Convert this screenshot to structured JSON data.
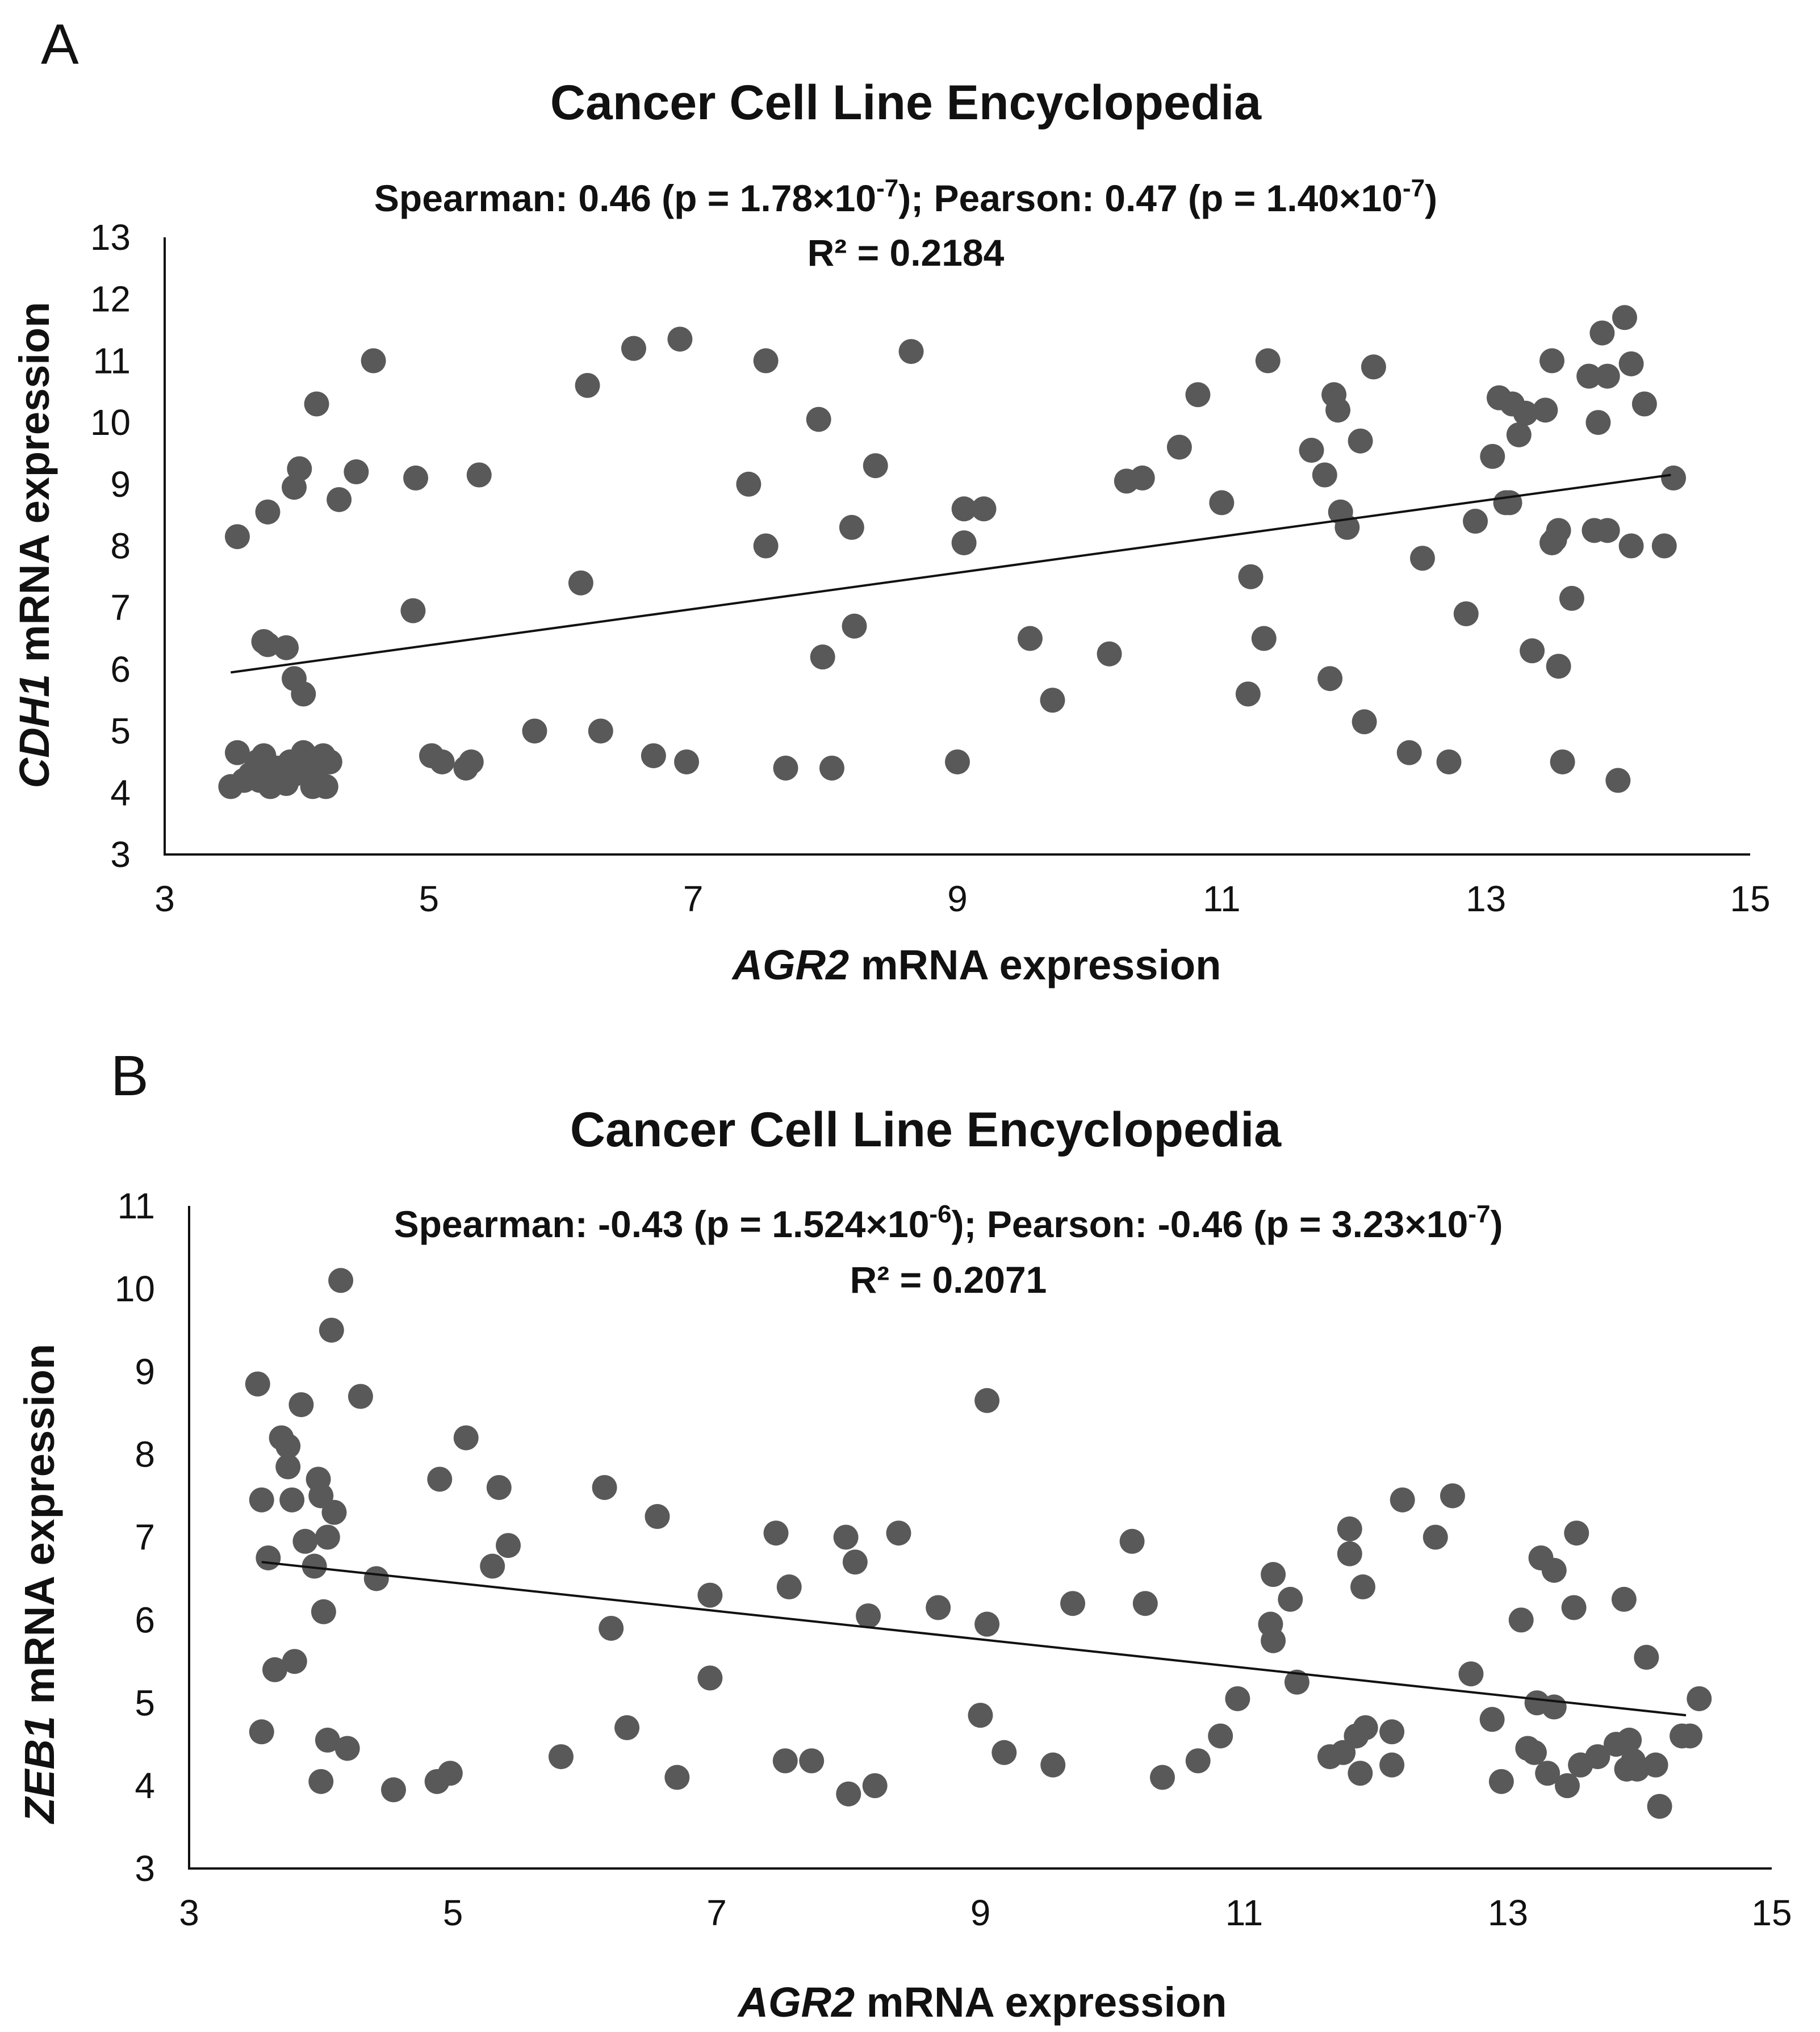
{
  "chart_data": [
    {
      "type": "scatter",
      "panel": "A",
      "title": "Cancer Cell Line Encyclopedia",
      "stats": {
        "spearman_label": "Spearman: 0.46 (p = 1.78×10",
        "spearman_exp": "-7",
        "pearson_label": "); Pearson: 0.47 (p = 1.40×10",
        "pearson_exp": "-7",
        "close": ")",
        "r2": "R² = 0.2184"
      },
      "xlabel_gene": "AGR2",
      "xlabel_rest": " mRNA expression",
      "ylabel_gene": "CDH1",
      "ylabel_rest": " mRNA expression",
      "xlim": [
        3,
        15
      ],
      "ylim": [
        3,
        13
      ],
      "xticks": [
        "3",
        "5",
        "7",
        "9",
        "11",
        "13",
        "15"
      ],
      "yticks": [
        "3",
        "4",
        "5",
        "6",
        "7",
        "8",
        "9",
        "10",
        "11",
        "12",
        "13"
      ],
      "trendline": {
        "x": [
          3.5,
          14.4
        ],
        "y": [
          5.95,
          9.15
        ]
      },
      "x": [
        3.5,
        3.55,
        3.6,
        3.65,
        3.7,
        3.72,
        3.75,
        3.78,
        3.8,
        3.83,
        3.85,
        3.88,
        3.9,
        3.92,
        3.95,
        3.98,
        4.0,
        4.02,
        4.05,
        4.08,
        4.1,
        4.12,
        4.15,
        4.2,
        4.22,
        4.25,
        3.75,
        3.78,
        3.92,
        3.98,
        4.05,
        3.55,
        3.78,
        3.98,
        4.02,
        4.32,
        4.45,
        4.58,
        4.15,
        4.88,
        5.02,
        4.9,
        5.1,
        5.28,
        5.32,
        5.38,
        5.8,
        6.15,
        6.2,
        6.3,
        6.55,
        6.7,
        6.9,
        6.95,
        7.42,
        7.55,
        7.55,
        7.7,
        7.95,
        7.98,
        8.05,
        8.2,
        8.22,
        8.38,
        8.65,
        9.0,
        9.05,
        9.05,
        9.2,
        9.55,
        9.72,
        10.15,
        10.28,
        10.4,
        10.68,
        10.82,
        11.0,
        11.2,
        11.22,
        11.32,
        11.35,
        11.68,
        11.78,
        11.82,
        11.85,
        11.88,
        11.9,
        11.95,
        12.05,
        12.08,
        12.15,
        12.42,
        12.52,
        12.72,
        12.85,
        12.92,
        13.05,
        13.1,
        13.15,
        13.18,
        13.2,
        13.25,
        13.3,
        13.35,
        13.45,
        13.5,
        13.5,
        13.52,
        13.55,
        13.58,
        13.65,
        13.78,
        13.82,
        13.85,
        13.88,
        13.92,
        13.92,
        14.0,
        14.05,
        14.1,
        14.2,
        14.35,
        14.42,
        14.1,
        13.55
      ],
      "y": [
        4.1,
        4.65,
        4.2,
        4.3,
        4.5,
        4.2,
        4.6,
        4.35,
        4.1,
        4.2,
        4.4,
        4.25,
        4.3,
        4.15,
        4.5,
        4.3,
        4.45,
        4.35,
        4.65,
        4.5,
        4.3,
        4.1,
        4.2,
        4.6,
        4.1,
        4.5,
        6.45,
        6.4,
        6.35,
        5.85,
        5.6,
        8.15,
        8.55,
        8.95,
        9.25,
        8.75,
        9.2,
        11.0,
        10.3,
        6.95,
        4.6,
        9.1,
        4.5,
        4.4,
        4.5,
        9.15,
        5.0,
        7.4,
        10.6,
        5.0,
        11.2,
        4.6,
        11.35,
        4.5,
        9.0,
        8.0,
        11.0,
        4.4,
        10.05,
        6.2,
        4.4,
        8.3,
        6.7,
        9.3,
        11.15,
        4.5,
        8.05,
        8.6,
        8.6,
        6.5,
        5.5,
        6.25,
        9.05,
        9.1,
        9.6,
        10.45,
        8.7,
        5.6,
        7.5,
        6.5,
        11.0,
        9.55,
        9.15,
        5.85,
        10.45,
        10.2,
        8.55,
        8.3,
        9.7,
        5.15,
        10.9,
        4.65,
        7.8,
        4.5,
        6.9,
        8.4,
        9.45,
        10.4,
        8.7,
        8.7,
        10.3,
        9.8,
        10.15,
        6.3,
        10.2,
        11.0,
        8.05,
        8.1,
        6.05,
        4.5,
        7.15,
        10.75,
        8.25,
        10.0,
        11.45,
        10.75,
        8.25,
        4.2,
        11.7,
        10.95,
        10.3,
        8.0,
        9.1,
        8.0,
        8.25
      ]
    },
    {
      "type": "scatter",
      "panel": "B",
      "title": "Cancer Cell Line Encyclopedia",
      "stats": {
        "spearman_label": "Spearman: -0.43 (p = 1.524×10",
        "spearman_exp": "-6",
        "pearson_label": "); Pearson: -0.46 (p = 3.23×10",
        "pearson_exp": "-7",
        "close": ")",
        "r2": "R² = 0.2071"
      },
      "xlabel_gene": "AGR2",
      "xlabel_rest": " mRNA expression",
      "ylabel_gene": "ZEB1",
      "ylabel_rest": " mRNA expression",
      "xlim": [
        3,
        15
      ],
      "ylim": [
        3,
        11
      ],
      "xticks": [
        "3",
        "5",
        "7",
        "9",
        "11",
        "13",
        "15"
      ],
      "yticks": [
        "3",
        "4",
        "5",
        "6",
        "7",
        "8",
        "9",
        "10",
        "11"
      ],
      "trendline": {
        "x": [
          3.55,
          14.35
        ],
        "y": [
          6.7,
          4.85
        ]
      },
      "x": [
        3.52,
        3.55,
        3.55,
        3.6,
        3.65,
        3.7,
        3.75,
        3.75,
        3.78,
        3.8,
        3.85,
        3.88,
        3.95,
        3.98,
        4.0,
        4.0,
        4.02,
        4.05,
        4.05,
        4.08,
        4.1,
        4.15,
        4.2,
        4.3,
        4.42,
        4.55,
        4.88,
        4.9,
        4.98,
        5.1,
        5.3,
        5.35,
        5.42,
        5.82,
        6.15,
        6.2,
        6.32,
        6.55,
        6.7,
        6.95,
        6.95,
        7.45,
        7.52,
        7.55,
        7.72,
        7.98,
        8.0,
        8.05,
        8.15,
        8.2,
        8.38,
        8.68,
        9.0,
        9.05,
        9.05,
        9.18,
        9.55,
        9.7,
        10.15,
        10.25,
        10.38,
        10.65,
        10.82,
        10.95,
        11.2,
        11.22,
        11.22,
        11.35,
        11.4,
        11.65,
        11.75,
        11.8,
        11.8,
        11.85,
        11.88,
        11.9,
        11.92,
        12.12,
        12.12,
        12.2,
        12.45,
        12.58,
        12.72,
        12.88,
        12.95,
        13.1,
        13.15,
        13.2,
        13.22,
        13.25,
        13.3,
        13.35,
        13.35,
        13.45,
        13.5,
        13.52,
        13.55,
        13.55,
        13.68,
        13.82,
        13.88,
        13.9,
        13.92,
        13.95,
        13.98,
        14.05,
        14.12,
        14.15,
        14.32,
        14.38,
        14.45
      ],
      "y": [
        8.85,
        7.45,
        4.65,
        6.75,
        5.4,
        8.2,
        8.1,
        7.85,
        7.45,
        5.5,
        8.6,
        6.95,
        6.65,
        7.7,
        7.5,
        4.05,
        6.1,
        4.55,
        7.0,
        9.5,
        7.3,
        10.1,
        4.45,
        8.7,
        6.5,
        3.95,
        4.05,
        7.7,
        4.15,
        8.2,
        6.65,
        7.6,
        6.9,
        4.35,
        7.6,
        5.9,
        4.7,
        7.25,
        4.1,
        6.3,
        5.3,
        7.05,
        4.3,
        6.4,
        4.3,
        7.0,
        3.9,
        6.7,
        6.05,
        4.0,
        7.05,
        6.15,
        4.85,
        8.65,
        5.95,
        4.4,
        4.25,
        6.2,
        6.95,
        6.2,
        4.1,
        4.3,
        4.6,
        5.05,
        5.95,
        6.55,
        5.75,
        6.25,
        5.25,
        4.35,
        4.4,
        6.8,
        7.1,
        4.6,
        4.15,
        6.4,
        4.7,
        4.65,
        4.25,
        7.45,
        7.0,
        7.5,
        5.35,
        4.8,
        4.05,
        6.0,
        4.45,
        4.4,
        5.0,
        6.75,
        4.15,
        4.95,
        6.6,
        4.0,
        6.15,
        7.05,
        4.25,
        4.25,
        4.35,
        4.5,
        6.25,
        4.2,
        4.55,
        4.3,
        4.2,
        5.55,
        4.25,
        3.75,
        4.6,
        4.6,
        5.05
      ]
    }
  ]
}
